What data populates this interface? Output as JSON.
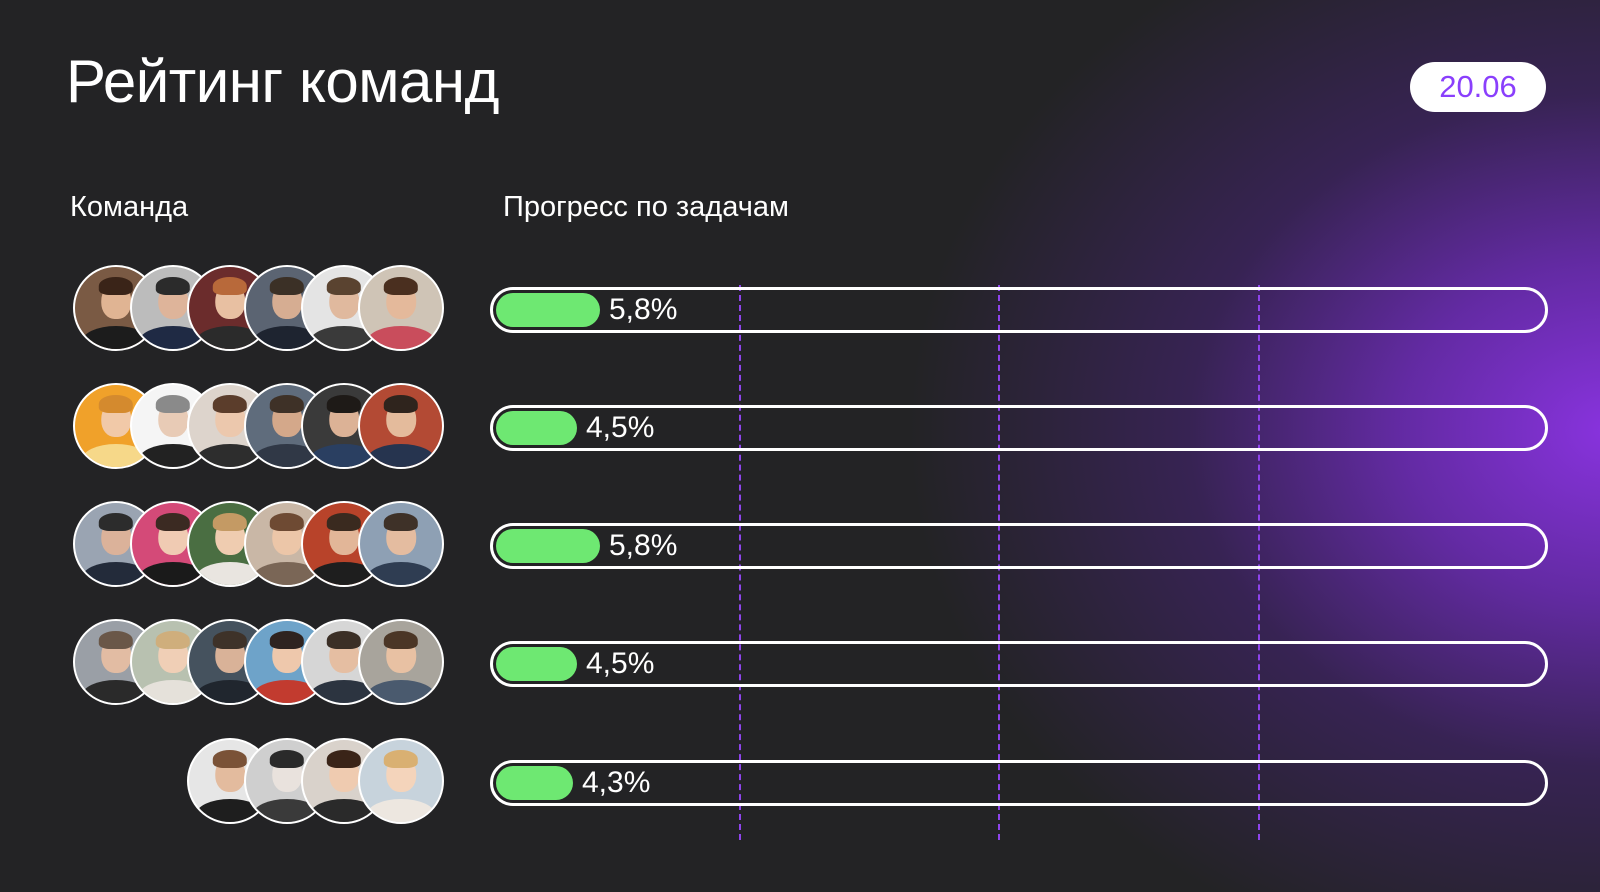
{
  "title": "Рейтинг команд",
  "date": "20.06",
  "columns": {
    "team": "Команда",
    "progress": "Прогресс по задачам"
  },
  "colors": {
    "accent": "#8a3ffc",
    "bar_fill": "#6ee872",
    "background": "#232325",
    "grid_line": "#8e44ec"
  },
  "teams": [
    {
      "progress_label": "5,8%",
      "progress_value": 5.8,
      "members": [
        {
          "bg": "#7a5a44",
          "skin": "#e0b493",
          "hair": "#3a2418",
          "shirt": "#1c1c1c"
        },
        {
          "bg": "#bcbcbc",
          "skin": "#deb49a",
          "hair": "#2b2b2b",
          "shirt": "#1f2a44"
        },
        {
          "bg": "#6b2c2c",
          "skin": "#e8c0a2",
          "hair": "#b8693a",
          "shirt": "#2b2b2b"
        },
        {
          "bg": "#5b6472",
          "skin": "#d6ad92",
          "hair": "#3b3026",
          "shirt": "#1e2430"
        },
        {
          "bg": "#e4e4e4",
          "skin": "#e0b99e",
          "hair": "#5a4330",
          "shirt": "#3a3a3a"
        },
        {
          "bg": "#cfc4b6",
          "skin": "#e4b99b",
          "hair": "#4a2f1f",
          "shirt": "#c94d5c"
        }
      ]
    },
    {
      "progress_label": "4,5%",
      "progress_value": 4.5,
      "members": [
        {
          "bg": "#f0a12a",
          "skin": "#f1c9a8",
          "hair": "#d48a2e",
          "shirt": "#f6d889"
        },
        {
          "bg": "#f5f5f5",
          "skin": "#e8cbb6",
          "hair": "#8a8a8a",
          "shirt": "#222222"
        },
        {
          "bg": "#ddd4cc",
          "skin": "#ecc8ad",
          "hair": "#5b3d2b",
          "shirt": "#2d2d2d"
        },
        {
          "bg": "#5f6c7c",
          "skin": "#d4a88a",
          "hair": "#3e3127",
          "shirt": "#303846"
        },
        {
          "bg": "#3a3a3a",
          "skin": "#dcb296",
          "hair": "#1e1a17",
          "shirt": "#2a3f61"
        },
        {
          "bg": "#b34a34",
          "skin": "#e4bb9c",
          "hair": "#2f241d",
          "shirt": "#26344f"
        }
      ]
    },
    {
      "progress_label": "5,8%",
      "progress_value": 5.8,
      "members": [
        {
          "bg": "#9aa4b2",
          "skin": "#dbb29a",
          "hair": "#2c2c2c",
          "shirt": "#232b3a"
        },
        {
          "bg": "#d44a78",
          "skin": "#f0cbb3",
          "hair": "#3b2a22",
          "shirt": "#1a1a1a"
        },
        {
          "bg": "#4a6e42",
          "skin": "#efccb0",
          "hair": "#c49a64",
          "shirt": "#e9e5e0"
        },
        {
          "bg": "#c9b7a6",
          "skin": "#ecc6a8",
          "hair": "#6e4a33",
          "shirt": "#7a6656"
        },
        {
          "bg": "#b8432a",
          "skin": "#e2b698",
          "hair": "#3a2a1f",
          "shirt": "#1e1e1e"
        },
        {
          "bg": "#8ea0b4",
          "skin": "#e4bca0",
          "hair": "#3e3128",
          "shirt": "#2f3d52"
        }
      ]
    },
    {
      "progress_label": "4,5%",
      "progress_value": 4.5,
      "members": [
        {
          "bg": "#9a9fa6",
          "skin": "#e2bca3",
          "hair": "#6a5748",
          "shirt": "#2a2a2a"
        },
        {
          "bg": "#b8c1b0",
          "skin": "#f0cfb6",
          "hair": "#cfae7c",
          "shirt": "#e5e1da"
        },
        {
          "bg": "#45525e",
          "skin": "#d9b298",
          "hair": "#3e3229",
          "shirt": "#20262e"
        },
        {
          "bg": "#6ea3c9",
          "skin": "#eec8ac",
          "hair": "#2e2320",
          "shirt": "#c23b2f"
        },
        {
          "bg": "#d6d6d6",
          "skin": "#e5bea2",
          "hair": "#3b2f26",
          "shirt": "#2c3440"
        },
        {
          "bg": "#a8a49c",
          "skin": "#e8c1a3",
          "hair": "#4b3626",
          "shirt": "#4a5a6e"
        }
      ]
    },
    {
      "progress_label": "4,3%",
      "progress_value": 4.3,
      "members": [
        {
          "bg": "#e6e6e6",
          "skin": "#e3bb9e",
          "hair": "#7a5237",
          "shirt": "#1e1e1e"
        },
        {
          "bg": "#cfcfcf",
          "skin": "#e9e2dd",
          "hair": "#2a2a2a",
          "shirt": "#3a3a3a"
        },
        {
          "bg": "#d9d2cb",
          "skin": "#efcbb0",
          "hair": "#3a2418",
          "shirt": "#2a2a2a"
        },
        {
          "bg": "#c7d3dc",
          "skin": "#f4d4bb",
          "hair": "#d9b072",
          "shirt": "#ede7e0"
        }
      ]
    }
  ]
}
